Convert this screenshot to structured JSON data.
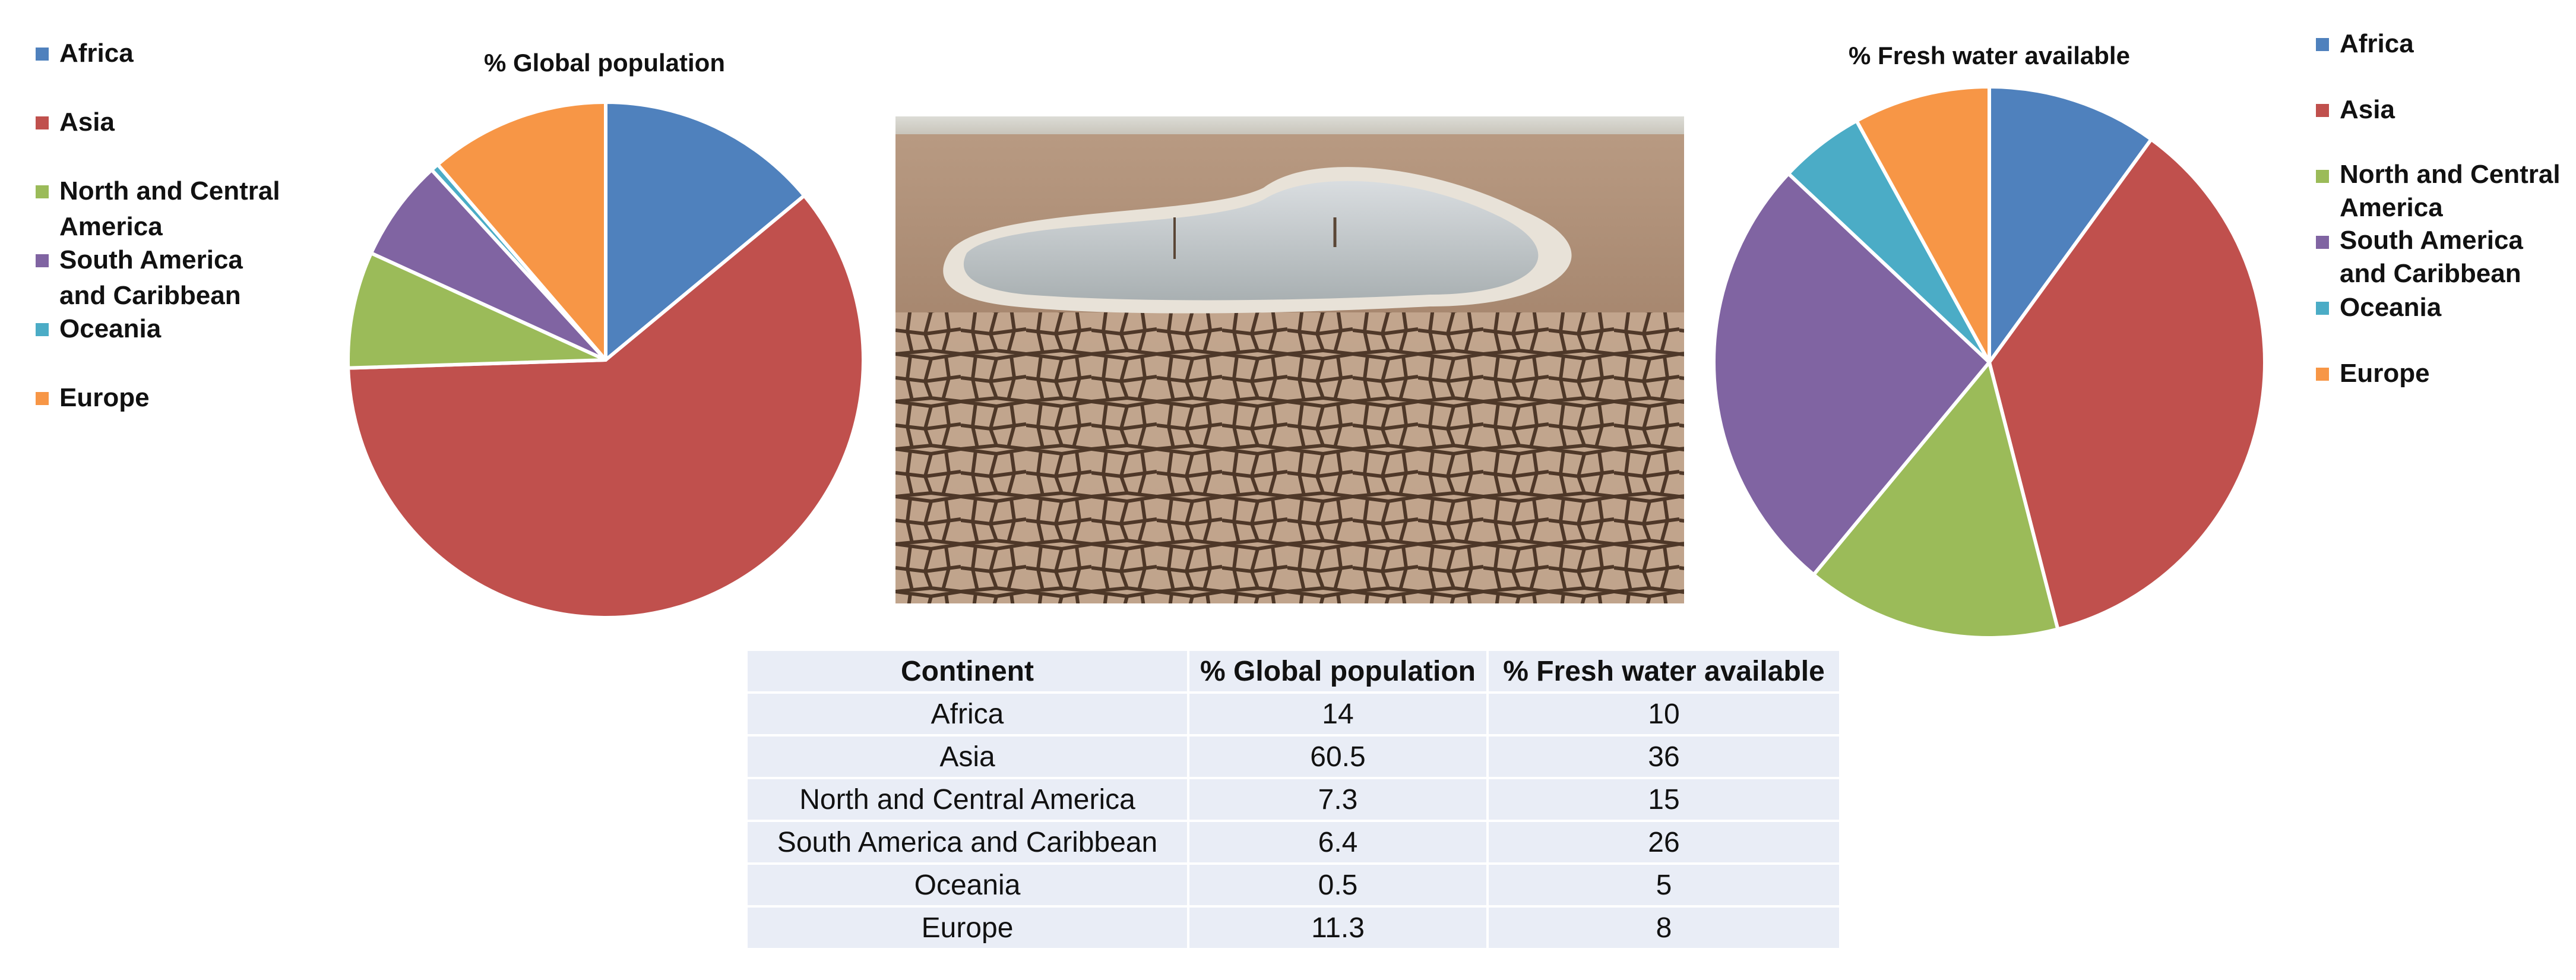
{
  "chart_data": [
    {
      "type": "pie",
      "title": "% Global population",
      "categories": [
        "Africa",
        "Asia",
        "North and Central America",
        "South America and Caribbean",
        "Oceania",
        "Europe"
      ],
      "values": [
        14,
        60.5,
        7.3,
        6.4,
        0.5,
        11.3
      ],
      "colors": [
        "#4f81bd",
        "#c0504d",
        "#9bbb59",
        "#8064a2",
        "#4bacc6",
        "#f79646"
      ],
      "legend": "left"
    },
    {
      "type": "pie",
      "title": "% Fresh water available",
      "categories": [
        "Africa",
        "Asia",
        "North and Central America",
        "South America and Caribbean",
        "Oceania",
        "Europe"
      ],
      "values": [
        10,
        36,
        15,
        26,
        5,
        8
      ],
      "colors": [
        "#4f81bd",
        "#c0504d",
        "#9bbb59",
        "#8064a2",
        "#4bacc6",
        "#f79646"
      ],
      "legend": "right"
    },
    {
      "type": "table",
      "columns": [
        "Continent",
        "% Global population",
        "% Fresh water available"
      ],
      "rows": [
        [
          "Africa",
          "14",
          "10"
        ],
        [
          "Asia",
          "60.5",
          "36"
        ],
        [
          "North and Central America",
          "7.3",
          "15"
        ],
        [
          "South America and Caribbean",
          "6.4",
          "26"
        ],
        [
          "Oceania",
          "0.5",
          "5"
        ],
        [
          "Europe",
          "11.3",
          "8"
        ]
      ]
    }
  ],
  "legend_left": [
    {
      "label": "Africa",
      "color": "#4f81bd"
    },
    {
      "label": "Asia",
      "color": "#c0504d"
    },
    {
      "label": "North and Central America",
      "color": "#9bbb59"
    },
    {
      "label": "South America and Caribbean",
      "color": "#8064a2"
    },
    {
      "label": "Oceania",
      "color": "#4bacc6"
    },
    {
      "label": "Europe",
      "color": "#f79646"
    }
  ],
  "legend_right": [
    {
      "label": "Africa",
      "color": "#4f81bd"
    },
    {
      "label": "Asia",
      "color": "#c0504d"
    },
    {
      "label": "North and Central America",
      "color": "#9bbb59"
    },
    {
      "label": "South America and Caribbean",
      "color": "#8064a2"
    },
    {
      "label": "Oceania",
      "color": "#4bacc6"
    },
    {
      "label": "Europe",
      "color": "#f79646"
    }
  ]
}
